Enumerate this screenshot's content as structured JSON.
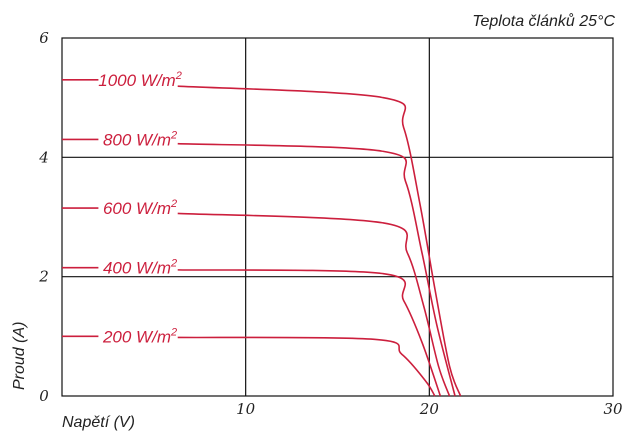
{
  "chart_data": {
    "type": "line",
    "annotation": "Teplota článků 25°C",
    "xlabel": "Napětí (V)",
    "ylabel": "Proud (A)",
    "xlim": [
      0,
      30
    ],
    "ylim": [
      0,
      6
    ],
    "xticks": [
      0,
      10,
      20,
      30
    ],
    "yticks": [
      0,
      2,
      4,
      6
    ],
    "grid": true,
    "series_color": "#cc1f3d",
    "series": [
      {
        "label": "1000 W/m",
        "sup": "2",
        "points": [
          [
            0,
            5.3
          ],
          [
            17.5,
            5.0
          ],
          [
            18.6,
            4.5
          ],
          [
            19.5,
            3.2
          ],
          [
            20.3,
            1.8
          ],
          [
            21.1,
            0.5
          ],
          [
            21.7,
            0
          ]
        ]
      },
      {
        "label": "800 W/m",
        "sup": "2",
        "points": [
          [
            0,
            4.3
          ],
          [
            17.5,
            4.1
          ],
          [
            18.7,
            3.6
          ],
          [
            19.6,
            2.4
          ],
          [
            20.4,
            1.2
          ],
          [
            21.4,
            0
          ]
        ]
      },
      {
        "label": "600 W/m",
        "sup": "2",
        "points": [
          [
            0,
            3.15
          ],
          [
            17.5,
            2.9
          ],
          [
            18.8,
            2.4
          ],
          [
            19.7,
            1.5
          ],
          [
            20.5,
            0.5
          ],
          [
            21.1,
            0
          ]
        ]
      },
      {
        "label": "400 W/m",
        "sup": "2",
        "points": [
          [
            0,
            2.15
          ],
          [
            17.5,
            2.05
          ],
          [
            18.6,
            1.6
          ],
          [
            19.6,
            0.9
          ],
          [
            20.6,
            0
          ]
        ]
      },
      {
        "label": "200 W/m",
        "sup": "2",
        "points": [
          [
            0,
            1.0
          ],
          [
            17.0,
            0.95
          ],
          [
            18.5,
            0.7
          ],
          [
            19.8,
            0.25
          ],
          [
            20.3,
            0
          ]
        ]
      }
    ]
  }
}
